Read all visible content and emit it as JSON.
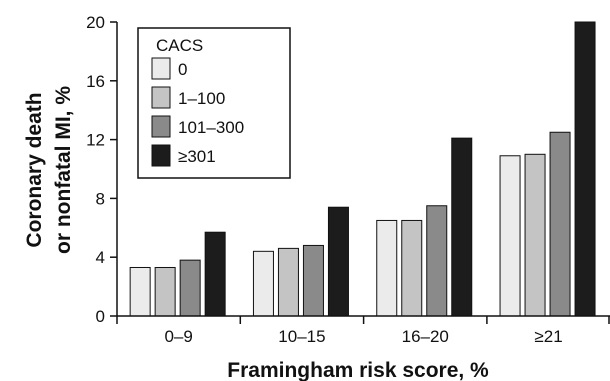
{
  "chart_data": {
    "type": "bar",
    "categories": [
      "0–9",
      "10–15",
      "16–20",
      "≥21"
    ],
    "series": [
      {
        "name": "0",
        "color": "#ebebeb",
        "values": [
          3.3,
          4.4,
          6.5,
          10.9
        ]
      },
      {
        "name": "1–100",
        "color": "#c4c4c4",
        "values": [
          3.3,
          4.6,
          6.5,
          11.0
        ]
      },
      {
        "name": "101–300",
        "color": "#8a8a8a",
        "values": [
          3.8,
          4.8,
          7.5,
          12.5
        ]
      },
      {
        "name": "≥301",
        "color": "#1c1c1c",
        "values": [
          5.7,
          7.4,
          12.1,
          20.0
        ]
      }
    ],
    "xlabel": "Framingham risk score, %",
    "ylabel": "Coronary death or nonfatal MI, %",
    "ylim": [
      0,
      20
    ],
    "yticks": [
      "0",
      "4",
      "8",
      "12",
      "16",
      "20"
    ],
    "legend": {
      "title": "CACS",
      "position": "top-left"
    },
    "grid": false
  }
}
